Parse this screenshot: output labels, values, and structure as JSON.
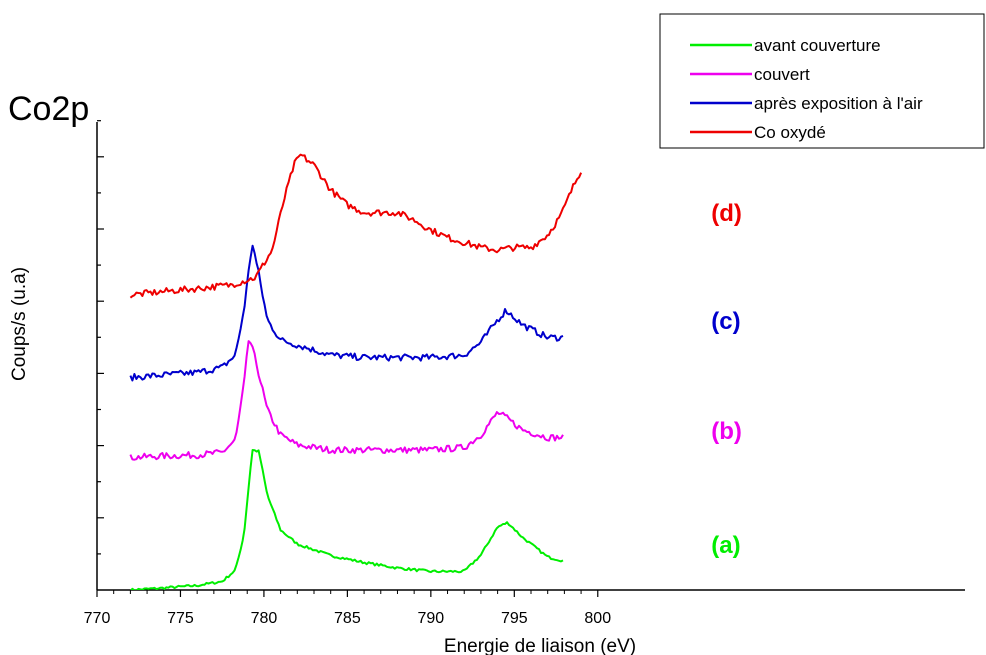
{
  "chart_data": {
    "type": "line",
    "title": "Co2p",
    "xlabel": "Energie de liaison (eV)",
    "ylabel": "Coups/s (u.a)",
    "xlim": [
      770,
      822
    ],
    "ylim": [
      0,
      100
    ],
    "xticks": [
      "770",
      "775",
      "780",
      "785",
      "790",
      "795",
      "800"
    ],
    "xtick_values": [
      770,
      775,
      780,
      785,
      790,
      795,
      800
    ],
    "legend_position": "top-right",
    "grid": false,
    "series": [
      {
        "name": "avant couverture",
        "color": "#00ee00",
        "label": "(a)",
        "label_x": 806.8,
        "label_y": 7.4,
        "x": [
          772,
          774,
          776,
          777.5,
          778.3,
          778.8,
          779.3,
          779.7,
          780.2,
          781,
          782,
          784,
          786,
          788,
          790,
          792,
          793,
          794,
          794.6,
          795.5,
          797,
          798
        ],
        "y": [
          0,
          0.4,
          0.9,
          1.7,
          4,
          11,
          28,
          27.7,
          19,
          12,
          9.2,
          6.9,
          5.5,
          4.4,
          3.7,
          3.7,
          7,
          12.6,
          13.5,
          10.5,
          6.6,
          5.8
        ]
      },
      {
        "name": "couvert",
        "color": "#ee00ee",
        "label": "(b)",
        "label_x": 806.8,
        "label_y": 30.2,
        "x": [
          772,
          774,
          776,
          777.5,
          778.3,
          778.8,
          779.1,
          779.5,
          780.2,
          781,
          782,
          784,
          786,
          788,
          790,
          792,
          793,
          794,
          794.5,
          795.5,
          797,
          798
        ],
        "y": [
          26.5,
          26.8,
          27,
          27.5,
          30,
          41,
          50.5,
          46,
          36,
          31,
          29,
          28,
          28,
          28,
          28,
          28.5,
          31,
          35.5,
          34.5,
          32,
          30.5,
          30.5
        ]
      },
      {
        "name": "après exposition à l'air",
        "color": "#0000cc",
        "label": "(c)",
        "label_x": 806.8,
        "label_y": 52.2,
        "x": [
          772,
          774,
          776,
          777.5,
          778.3,
          778.8,
          779.3,
          779.7,
          780.2,
          781,
          782,
          784,
          786,
          788,
          790,
          792,
          793,
          794,
          794.5,
          795.5,
          797,
          798
        ],
        "y": [
          42.5,
          43,
          43.5,
          44.5,
          47,
          56,
          69.5,
          63,
          54,
          50,
          49,
          47,
          46.5,
          46.5,
          46.5,
          47,
          49.5,
          54,
          56,
          53,
          50.5,
          50.5
        ]
      },
      {
        "name": "Co oxydé",
        "color": "#ee0000",
        "label": "(d)",
        "label_x": 806.8,
        "label_y": 73.8,
        "x": [
          772,
          774,
          776,
          778,
          779.5,
          780.5,
          781.2,
          781.8,
          782.2,
          783,
          784,
          785,
          786,
          787,
          788,
          789,
          790,
          791,
          792,
          793,
          794,
          795,
          796,
          797,
          797.8,
          798.5,
          799
        ],
        "y": [
          59,
          59.7,
          60.3,
          61,
          62.5,
          68,
          78,
          85,
          87,
          85,
          80,
          77,
          75.5,
          75.5,
          75.5,
          74,
          72,
          70.5,
          69.5,
          68.5,
          68,
          68.5,
          68.5,
          71,
          75,
          80.5,
          84
        ]
      }
    ]
  }
}
